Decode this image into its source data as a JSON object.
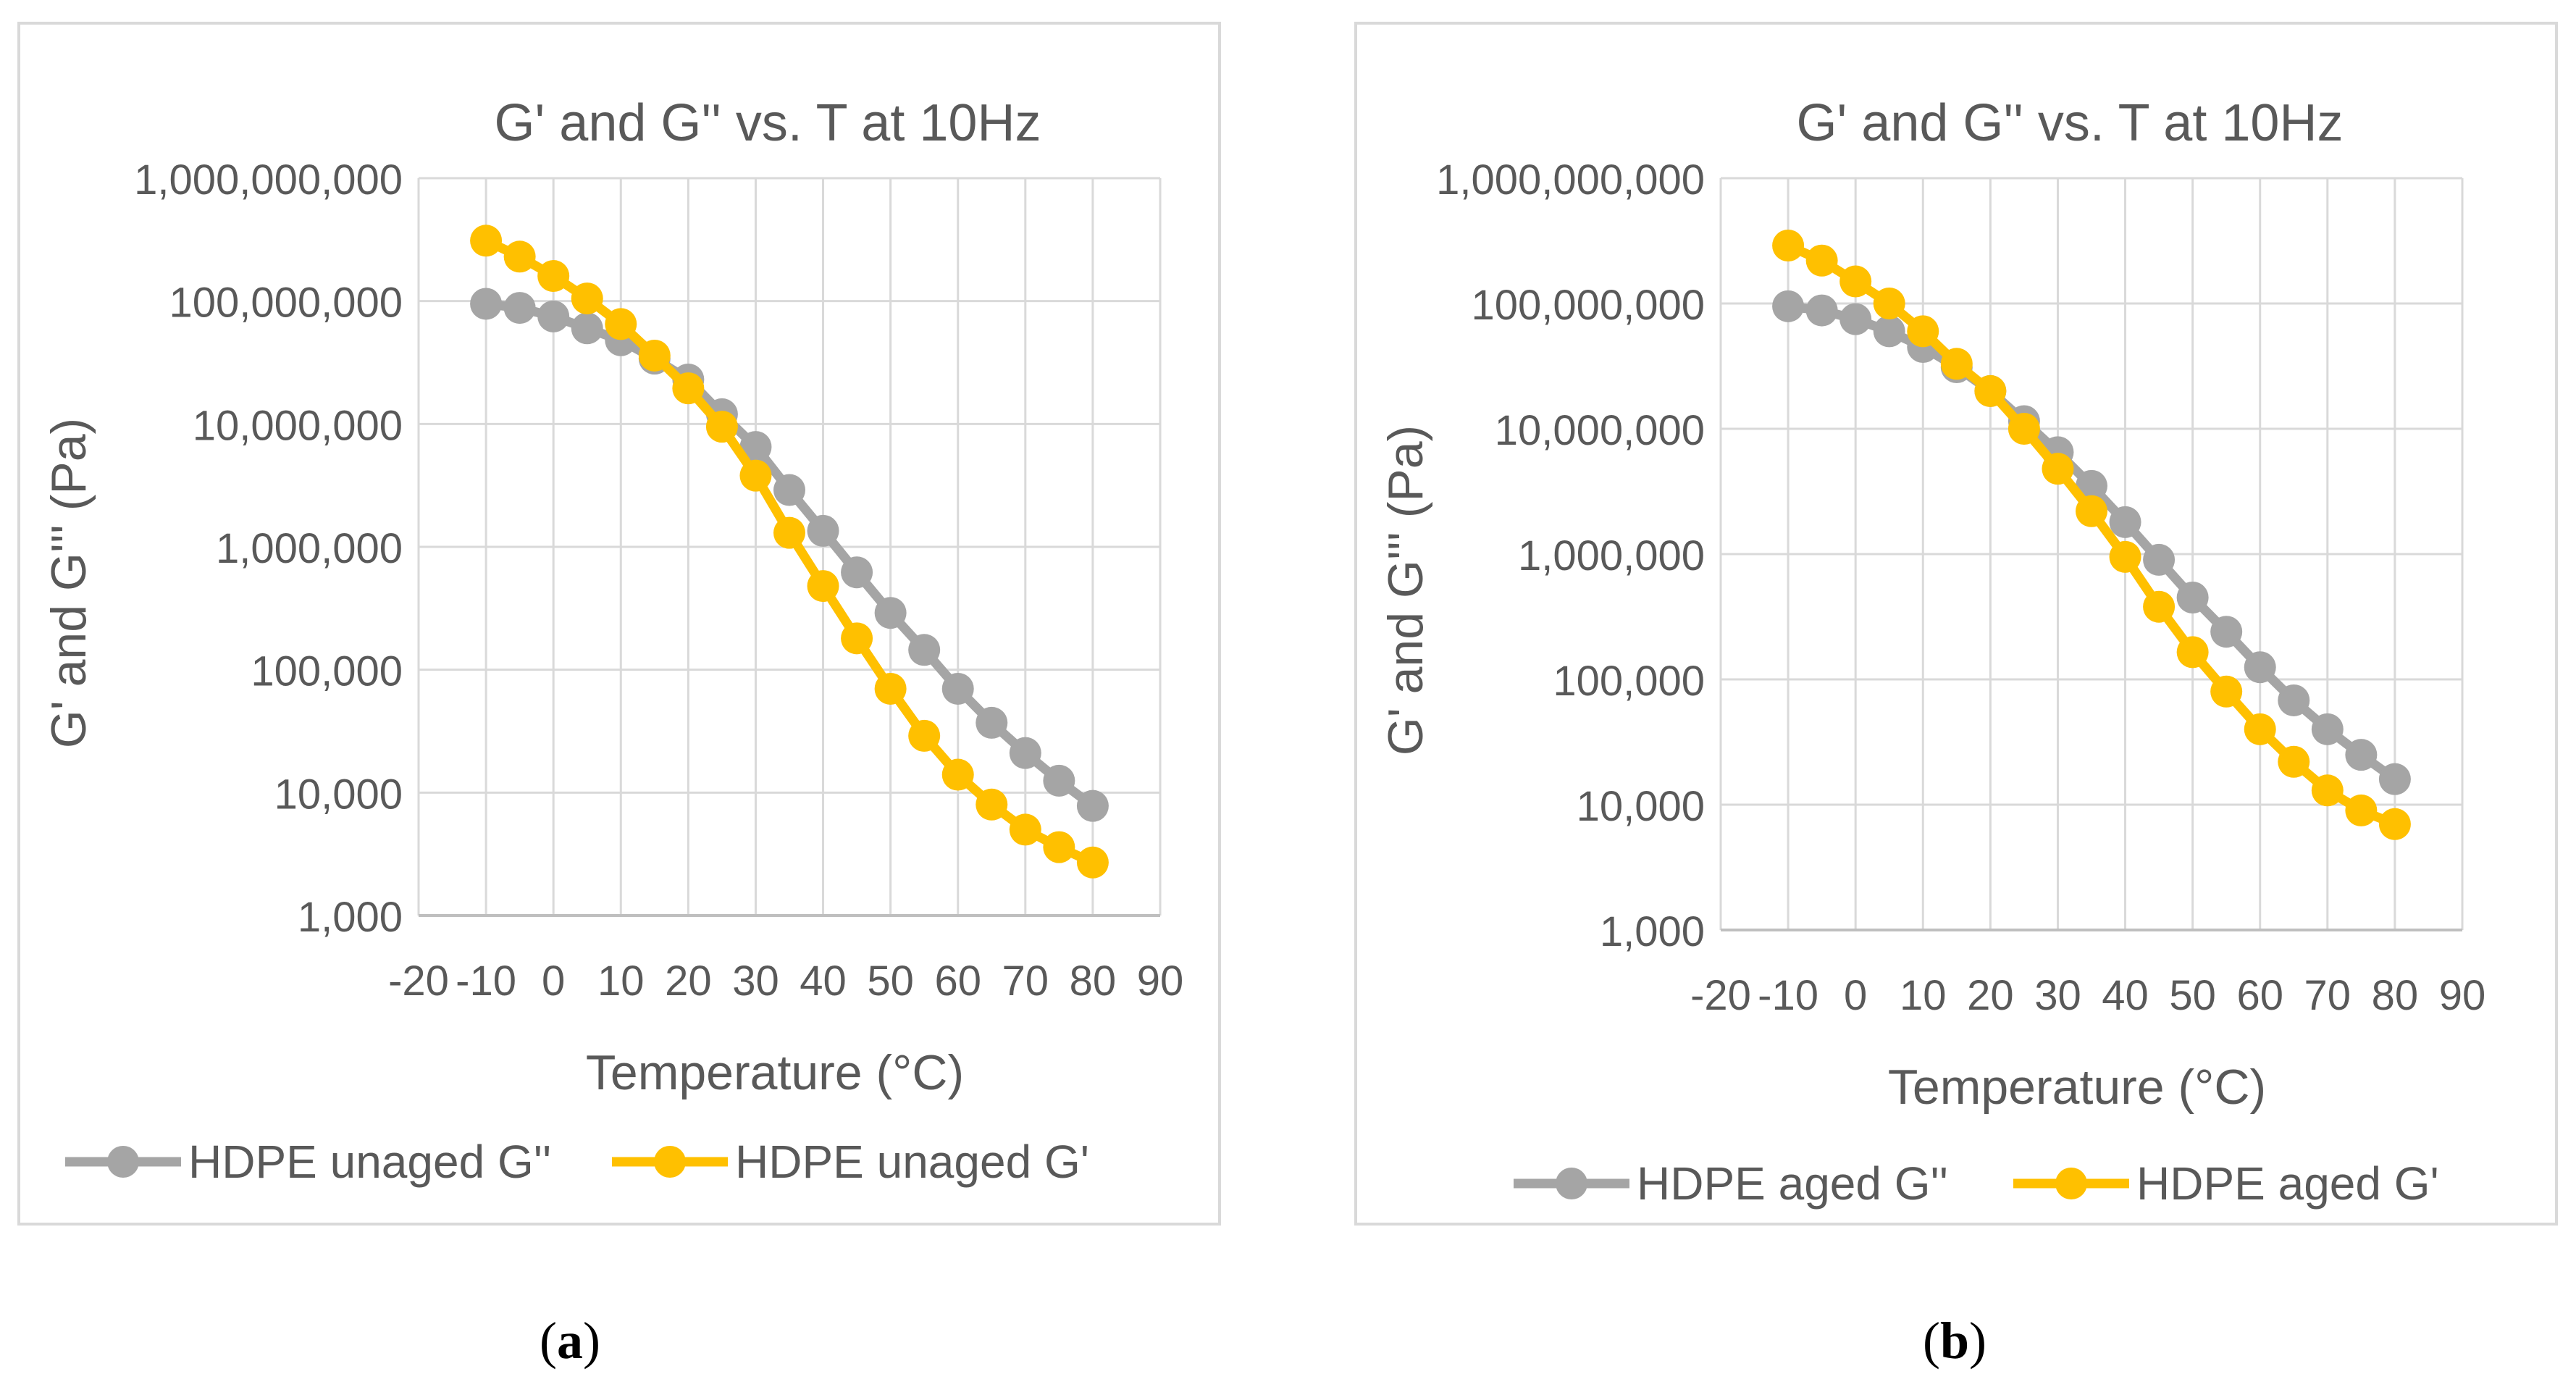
{
  "chart_data": [
    {
      "type": "line",
      "panel": "a",
      "title": "G' and G'' vs. T at 10Hz",
      "xlabel": "Temperature (°C)",
      "ylabel": "G' and G''' (Pa)",
      "x_ticks": [
        "-20",
        "-10",
        "0",
        "10",
        "20",
        "30",
        "40",
        "50",
        "60",
        "70",
        "80",
        "90"
      ],
      "y_ticks": [
        "1,000",
        "10,000",
        "100,000",
        "1,000,000",
        "10,000,000",
        "100,000,000",
        "1,000,000,000"
      ],
      "xlim": [
        -20,
        90
      ],
      "ylim": [
        1000,
        1000000000
      ],
      "yscale": "log",
      "grid": true,
      "legend_position": "bottom",
      "x": [
        -10,
        -5,
        0,
        5,
        10,
        15,
        20,
        25,
        30,
        35,
        40,
        45,
        50,
        55,
        60,
        65,
        70,
        75,
        80
      ],
      "series": [
        {
          "name": "HDPE unaged G''",
          "color": "#a5a5a5",
          "values": [
            95000000,
            88000000,
            75000000,
            60000000,
            48000000,
            34000000,
            23000000,
            12000000,
            6500000,
            2900000,
            1350000,
            620000,
            290000,
            145000,
            70000,
            37000,
            21000,
            12500,
            7800
          ]
        },
        {
          "name": "HDPE unaged G'",
          "color": "#ffc000",
          "values": [
            310000000,
            230000000,
            160000000,
            105000000,
            65000000,
            36000000,
            19500000,
            9500000,
            3800000,
            1300000,
            480000,
            180000,
            70000,
            29000,
            14000,
            8000,
            5000,
            3600,
            2700
          ]
        }
      ]
    },
    {
      "type": "line",
      "panel": "b",
      "title": "G' and G'' vs. T at 10Hz",
      "xlabel": "Temperature (°C)",
      "ylabel": "G' and G''' (Pa)",
      "x_ticks": [
        "-20",
        "-10",
        "0",
        "10",
        "20",
        "30",
        "40",
        "50",
        "60",
        "70",
        "80",
        "90"
      ],
      "y_ticks": [
        "1,000",
        "10,000",
        "100,000",
        "1,000,000",
        "10,000,000",
        "100,000,000",
        "1,000,000,000"
      ],
      "xlim": [
        -20,
        90
      ],
      "ylim": [
        1000,
        1000000000
      ],
      "yscale": "log",
      "grid": true,
      "legend_position": "bottom",
      "x": [
        -10,
        -5,
        0,
        5,
        10,
        15,
        20,
        25,
        30,
        35,
        40,
        45,
        50,
        55,
        60,
        65,
        70,
        75,
        80
      ],
      "series": [
        {
          "name": "HDPE aged G''",
          "color": "#a5a5a5",
          "values": [
            95000000,
            88000000,
            75000000,
            60000000,
            45000000,
            31000000,
            20000000,
            11500000,
            6500000,
            3500000,
            1800000,
            900000,
            450000,
            240000,
            125000,
            68000,
            40000,
            25000,
            16000
          ]
        },
        {
          "name": "HDPE aged G'",
          "color": "#ffc000",
          "values": [
            290000000,
            220000000,
            150000000,
            100000000,
            60000000,
            33000000,
            20000000,
            10000000,
            4800000,
            2200000,
            950000,
            380000,
            165000,
            80000,
            40000,
            22000,
            13000,
            9000,
            7000
          ]
        }
      ]
    }
  ],
  "panel_labels": [
    "a",
    "b"
  ]
}
